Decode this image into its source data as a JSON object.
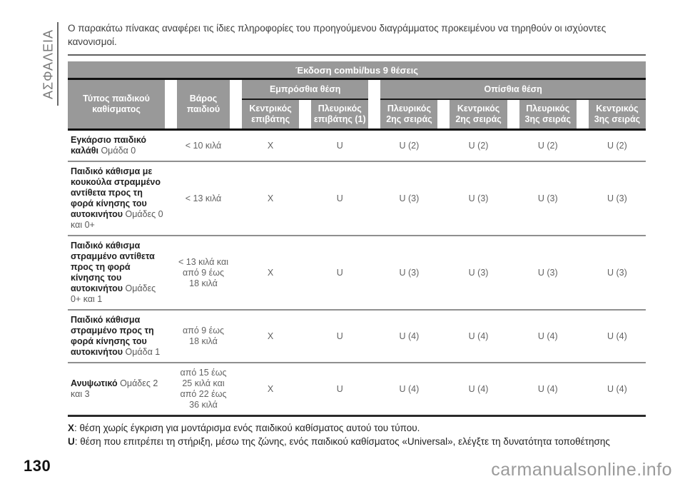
{
  "page": {
    "sidebar_label": "ΑΣΦΑΛΕΙΑ",
    "intro": "Ο παρακάτω πίνακας αναφέρει τις ίδιες πληροφορίες του προηγούμενου διαγράμματος προκειμένου να τηρηθούν οι ισχύοντες κανονισμοί.",
    "page_number": "130",
    "watermark": "carmanualsonline.info"
  },
  "table": {
    "title": "Έκδοση combi/bus 9 θέσεις",
    "col1_header": "Τύπος παιδικού καθίσματος",
    "col2_header": "Βάρος παιδιού",
    "group_front": "Εμπρόσθια θέση",
    "group_rear": "Οπίσθια θέση",
    "sub_headers": [
      "Κεντρικός επιβάτης",
      "Πλευρικός επιβάτης (1)",
      "Πλευρικός 2ης σειράς",
      "Κεντρικός 2ης σειράς",
      "Πλευρικός 3ης σειράς",
      "Κεντρικός 3ης σειράς"
    ],
    "rows": [
      {
        "name": "Εγκάρσιο παιδικό καλάθι",
        "group": "Ομάδα 0",
        "weight": "< 10 κιλά",
        "values": [
          "X",
          "U",
          "U (2)",
          "U (2)",
          "U (2)",
          "U (2)"
        ]
      },
      {
        "name": "Παιδικό κάθισμα με κουκούλα στραμμένο αντίθετα προς τη φορά κίνησης του αυτοκινήτου",
        "group": "Ομάδες 0 και 0+",
        "weight": "< 13 κιλά",
        "values": [
          "X",
          "U",
          "U (3)",
          "U (3)",
          "U (3)",
          "U (3)"
        ]
      },
      {
        "name": "Παιδικό κάθισμα στραμμένο αντίθετα προς τη φορά κίνησης του αυτοκινήτου",
        "group": "Ομάδες 0+ και 1",
        "weight": "< 13 κιλά και από 9 έως 18 κιλά",
        "values": [
          "X",
          "U",
          "U (3)",
          "U (3)",
          "U (3)",
          "U (3)"
        ]
      },
      {
        "name": "Παιδικό κάθισμα στραμμένο προς τη φορά κίνησης του αυτοκινήτου",
        "group": "Ομάδα 1",
        "weight": "από 9 έως 18 κιλά",
        "values": [
          "X",
          "U",
          "U (4)",
          "U (4)",
          "U (4)",
          "U (4)"
        ]
      },
      {
        "name": "Ανυψωτικό",
        "group": "Ομάδες 2 και 3",
        "weight": "από 15 έως 25 κιλά και από 22 έως 36 κιλά",
        "values": [
          "X",
          "U",
          "U (4)",
          "U (4)",
          "U (4)",
          "U (4)"
        ]
      }
    ],
    "notes": [
      {
        "key": "X",
        "text": ": θέση χωρίς έγκριση για μοντάρισμα ενός παιδικού καθίσματος αυτού του τύπου."
      },
      {
        "key": "U",
        "text": ": θέση που επιτρέπει τη στήριξη, μέσω της ζώνης, ενός παιδικού καθίσματος «Universal», ελέγξτε τη δυνατότητα τοποθέτησης"
      }
    ]
  },
  "colors": {
    "header_bg": "#999999",
    "header_text": "#ffffff",
    "rule_dark": "#1a1a1a",
    "row_separator": "#8f8f8f",
    "muted_text": "#636363",
    "sidebar_text": "#7a7a7a",
    "watermark_text": "#9a9a9a"
  }
}
